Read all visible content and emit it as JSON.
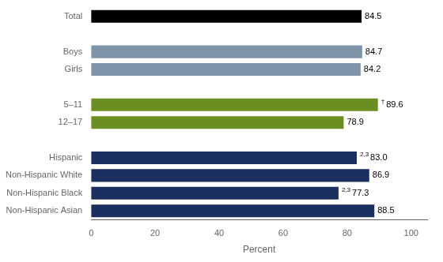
{
  "chart_data": {
    "type": "bar",
    "orientation": "horizontal",
    "categories": [
      "Total",
      null,
      "Boys",
      "Girls",
      null,
      "5–11",
      "12–17",
      null,
      "Hispanic",
      "Non-Hispanic White",
      "Non-Hispanic Black",
      "Non-Hispanic Asian"
    ],
    "values": [
      84.5,
      null,
      84.7,
      84.2,
      null,
      89.6,
      78.9,
      null,
      83.0,
      86.9,
      77.3,
      88.5
    ],
    "value_labels": [
      "84.5",
      null,
      "84.7",
      "84.2",
      null,
      "89.6",
      "78.9",
      null,
      "83.0",
      "86.9",
      "77.3",
      "88.5"
    ],
    "colors": [
      "#000000",
      null,
      "#7f94a8",
      "#7f94a8",
      null,
      "#6b8e23",
      "#6b8e23",
      null,
      "#1b2f5e",
      "#1b2f5e",
      "#1b2f5e",
      "#1b2f5e"
    ],
    "annotations": [
      {
        "category": "5–11",
        "text": "†"
      },
      {
        "category": "Hispanic",
        "text": "2,3"
      },
      {
        "category": "Non-Hispanic Black",
        "text": "2,3"
      }
    ],
    "data_labels": true,
    "xlabel": "Percent",
    "xlim": [
      0,
      105
    ],
    "xticks": [
      0,
      20,
      40,
      60,
      80,
      100
    ],
    "grid": false,
    "legend": false
  }
}
